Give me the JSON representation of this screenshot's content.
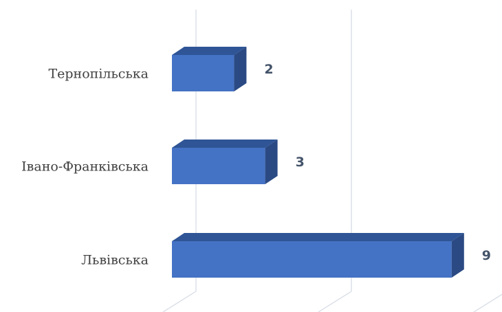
{
  "chart_data": {
    "type": "bar",
    "orientation": "horizontal",
    "style": "3d",
    "categories": [
      "Тернопільська",
      "Івано-Франківська",
      "Львівська"
    ],
    "values": [
      2,
      3,
      9
    ],
    "xlim": [
      0,
      10
    ],
    "grid": true,
    "data_labels": true,
    "legend": "none",
    "title": "",
    "xlabel": "",
    "ylabel": "",
    "colors": {
      "bar_front": "#4472c4",
      "bar_top": "#2f5596",
      "bar_side": "#2b4a84",
      "grid": "#d6dce5",
      "label_text": "#404040",
      "value_text": "#44546a"
    }
  }
}
